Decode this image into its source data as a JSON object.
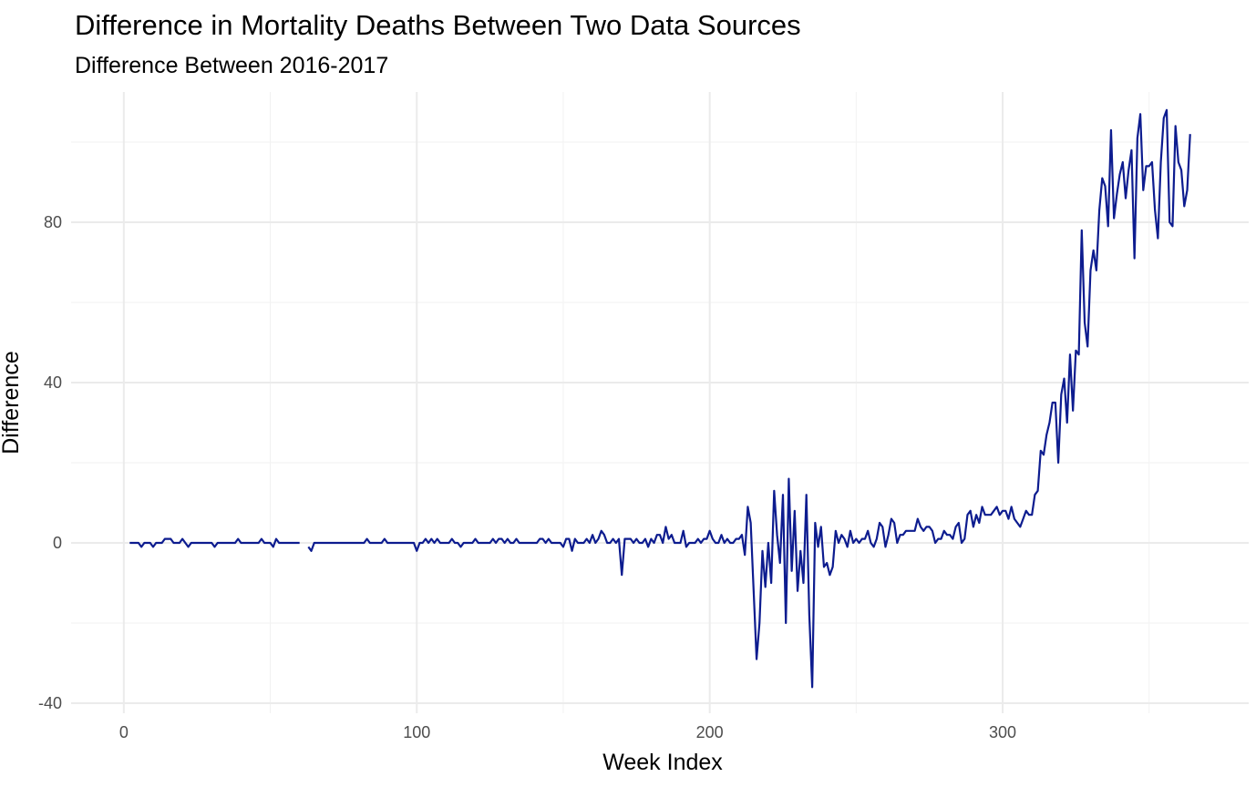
{
  "chart_data": {
    "type": "line",
    "title": "Difference in Mortality Deaths Between Two Data Sources",
    "subtitle": "Difference Between 2016-2017",
    "xlabel": "Week Index",
    "ylabel": "Difference",
    "xlim": [
      -18,
      384
    ],
    "ylim": [
      -42.5,
      112.5
    ],
    "x_ticks": [
      0,
      100,
      200,
      300
    ],
    "y_ticks": [
      -40,
      0,
      40,
      80
    ],
    "x_minor": [
      50,
      150,
      250,
      350
    ],
    "y_minor": [
      -20,
      20,
      60,
      100
    ],
    "grid": true,
    "line_color": "#0d1c8f",
    "series": [
      {
        "x_start": 2,
        "x_step": 1,
        "values": [
          0,
          0,
          0,
          0,
          -1,
          0,
          0,
          0,
          -1,
          0,
          0,
          0,
          1,
          1,
          1,
          0,
          0,
          0,
          1,
          0,
          -1,
          0,
          0,
          0,
          0,
          0,
          0,
          0,
          0,
          -1,
          0,
          0,
          0,
          0,
          0,
          0,
          0,
          1,
          0,
          0,
          0,
          0,
          0,
          0,
          0,
          1,
          0,
          0,
          0,
          -1,
          1,
          0,
          0,
          0,
          0,
          0,
          0,
          0,
          0,
          null,
          null,
          -1,
          -2,
          0,
          0,
          0,
          0,
          0,
          0,
          0,
          0,
          0,
          0,
          0,
          0,
          0,
          0,
          0,
          0,
          0,
          0,
          1,
          0,
          0,
          0,
          0,
          0,
          1,
          0,
          0,
          0,
          0,
          0,
          0,
          0,
          0,
          0,
          0,
          -2,
          0,
          0,
          1,
          0,
          1,
          0,
          1,
          0,
          0,
          0,
          0,
          1,
          0,
          0,
          -1,
          0,
          0,
          0,
          0,
          1,
          0,
          0,
          0,
          0,
          0,
          1,
          0,
          1,
          1,
          0,
          1,
          0,
          0,
          1,
          0,
          0,
          0,
          0,
          0,
          0,
          0,
          1,
          1,
          0,
          1,
          0,
          0,
          0,
          0,
          -1,
          1,
          1,
          -2,
          1,
          0,
          0,
          0,
          1,
          0,
          2,
          0,
          1,
          3,
          2,
          0,
          0,
          1,
          0,
          1,
          -8,
          1,
          1,
          1,
          0,
          1,
          0,
          0,
          1,
          -1,
          1,
          0,
          2,
          2,
          0,
          4,
          1,
          2,
          0,
          0,
          0,
          3,
          -1,
          0,
          0,
          0,
          1,
          0,
          1,
          1,
          3,
          1,
          0,
          0,
          2,
          0,
          1,
          0,
          0,
          1,
          1,
          2,
          -3,
          9,
          5,
          -12,
          -29,
          -20,
          -2,
          -11,
          0,
          -10,
          13,
          2,
          -5,
          12,
          -20,
          16,
          -7,
          8,
          -12,
          -2,
          -10,
          12,
          -18,
          -36,
          5,
          -1,
          4,
          -6,
          -5,
          -8,
          -6,
          3,
          0,
          2,
          1,
          -1,
          3,
          0,
          1,
          0,
          1,
          1,
          3,
          0,
          -1,
          1,
          5,
          4,
          -1,
          2,
          6,
          5,
          0,
          2,
          2,
          3,
          3,
          3,
          3,
          6,
          4,
          3,
          4,
          4,
          3,
          0,
          1,
          1,
          3,
          2,
          2,
          1,
          4,
          5,
          0,
          1,
          7,
          8,
          4,
          7,
          5,
          9,
          7,
          7,
          7,
          8,
          9,
          7,
          8,
          8,
          6,
          9,
          6,
          5,
          4,
          6,
          8,
          7,
          7,
          12,
          13,
          23,
          22,
          27,
          30,
          35,
          35,
          20,
          37,
          41,
          30,
          47,
          33,
          48,
          47,
          78,
          55,
          49,
          68,
          73,
          68,
          83,
          91,
          89,
          79,
          103,
          81,
          87,
          92,
          95,
          86,
          93,
          98,
          71,
          101,
          107,
          88,
          94,
          94,
          95,
          83,
          76,
          95,
          106,
          108,
          80,
          79,
          104,
          95,
          93,
          84,
          88,
          102
        ]
      }
    ]
  }
}
